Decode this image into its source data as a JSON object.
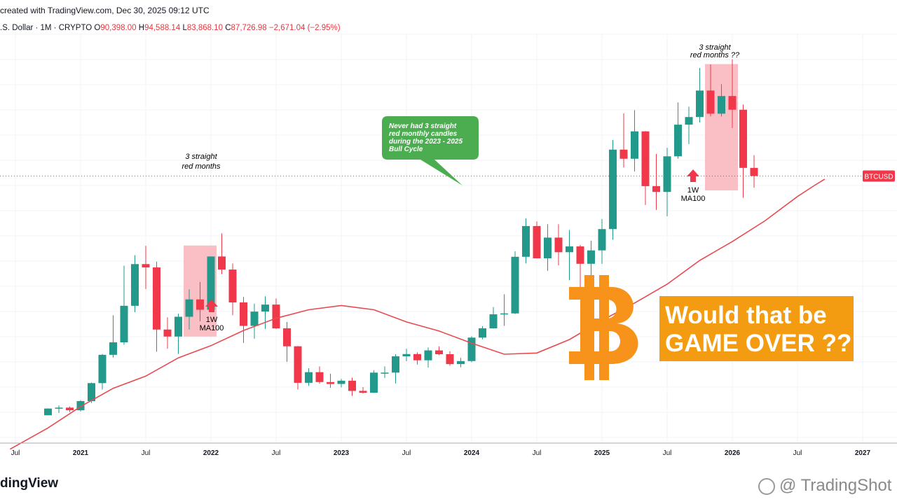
{
  "header": {
    "created_text": "created with TradingView.com, Dec 30, 2025 09:12 UTC"
  },
  "legend": {
    "symbol_text": ".S. Dollar · 1M · CRYPTO",
    "open_label": "O",
    "open_value": "90,398.00",
    "high_label": "H",
    "high_value": "94,588.14",
    "low_label": "L",
    "low_value": "83,868.10",
    "close_label": "C",
    "close_value": "87,726.98",
    "change_value": "−2,671.04 (−2.95%)"
  },
  "footer": {
    "brand_text": "dingView",
    "watermark_text": "@ TradingShot"
  },
  "colors": {
    "up": "#22998a",
    "down": "#f0384a",
    "ma": "#e84a4f",
    "highlight": "#f9b3bb",
    "callout": "#4cad50",
    "headline_bg": "#f39c12",
    "bitcoin": "#f7931a"
  },
  "chart_data": {
    "type": "candlestick",
    "timeframe": "1M",
    "symbol_label": "BTCUSD",
    "x_labels": [
      "Jul",
      "2021",
      "Jul",
      "2022",
      "Jul",
      "2023",
      "Jul",
      "2024",
      "Jul",
      "2025",
      "Jul",
      "2026",
      "Jul",
      "2027"
    ],
    "y_range": [
      0,
      126000
    ],
    "last_price": 87726.98,
    "candles": [
      {
        "o": 9140,
        "h": 11400,
        "l": 9100,
        "c": 11350
      },
      {
        "o": 11350,
        "h": 12400,
        "l": 9900,
        "c": 11650
      },
      {
        "o": 11650,
        "h": 12000,
        "l": 10200,
        "c": 10780
      },
      {
        "o": 10780,
        "h": 14100,
        "l": 10400,
        "c": 13800
      },
      {
        "o": 13800,
        "h": 19900,
        "l": 13200,
        "c": 19700
      },
      {
        "o": 19700,
        "h": 29300,
        "l": 17600,
        "c": 29000
      },
      {
        "o": 29000,
        "h": 42000,
        "l": 28100,
        "c": 33100
      },
      {
        "o": 33100,
        "h": 58300,
        "l": 32300,
        "c": 45100
      },
      {
        "o": 45100,
        "h": 61700,
        "l": 43000,
        "c": 58800
      },
      {
        "o": 58800,
        "h": 64800,
        "l": 50600,
        "c": 57700
      },
      {
        "o": 57700,
        "h": 59600,
        "l": 30000,
        "c": 37300
      },
      {
        "o": 37300,
        "h": 41300,
        "l": 31000,
        "c": 35000
      },
      {
        "o": 35000,
        "h": 42500,
        "l": 29300,
        "c": 41500
      },
      {
        "o": 41500,
        "h": 50500,
        "l": 37300,
        "c": 47200
      },
      {
        "o": 47200,
        "h": 52900,
        "l": 40000,
        "c": 43800
      },
      {
        "o": 43800,
        "h": 61300,
        "l": 43300,
        "c": 61300
      },
      {
        "o": 61300,
        "h": 68900,
        "l": 55500,
        "c": 57000
      },
      {
        "o": 57000,
        "h": 59000,
        "l": 42000,
        "c": 46200
      },
      {
        "o": 46200,
        "h": 48000,
        "l": 32900,
        "c": 38500
      },
      {
        "o": 38500,
        "h": 45800,
        "l": 34300,
        "c": 43200
      },
      {
        "o": 43200,
        "h": 48200,
        "l": 37500,
        "c": 45500
      },
      {
        "o": 45500,
        "h": 47500,
        "l": 37500,
        "c": 37700
      },
      {
        "o": 37700,
        "h": 39800,
        "l": 26700,
        "c": 31800
      },
      {
        "o": 31800,
        "h": 31900,
        "l": 17600,
        "c": 19800
      },
      {
        "o": 19800,
        "h": 24600,
        "l": 18800,
        "c": 23300
      },
      {
        "o": 23300,
        "h": 25200,
        "l": 19500,
        "c": 20050
      },
      {
        "o": 20050,
        "h": 22800,
        "l": 18150,
        "c": 19430
      },
      {
        "o": 19430,
        "h": 21100,
        "l": 18300,
        "c": 20500
      },
      {
        "o": 20500,
        "h": 21500,
        "l": 15500,
        "c": 17150
      },
      {
        "o": 17150,
        "h": 18400,
        "l": 16300,
        "c": 16550
      },
      {
        "o": 16550,
        "h": 23950,
        "l": 16500,
        "c": 23150
      },
      {
        "o": 23150,
        "h": 25200,
        "l": 21400,
        "c": 23150
      },
      {
        "o": 23150,
        "h": 29200,
        "l": 19600,
        "c": 28500
      },
      {
        "o": 28500,
        "h": 31000,
        "l": 26900,
        "c": 29250
      },
      {
        "o": 29250,
        "h": 29800,
        "l": 25800,
        "c": 27200
      },
      {
        "o": 27200,
        "h": 31400,
        "l": 24800,
        "c": 30450
      },
      {
        "o": 30450,
        "h": 31800,
        "l": 28900,
        "c": 29200
      },
      {
        "o": 29200,
        "h": 30200,
        "l": 25400,
        "c": 25950
      },
      {
        "o": 25950,
        "h": 28000,
        "l": 24900,
        "c": 26950
      },
      {
        "o": 26950,
        "h": 35100,
        "l": 26550,
        "c": 34650
      },
      {
        "o": 34650,
        "h": 38400,
        "l": 34100,
        "c": 37700
      },
      {
        "o": 37700,
        "h": 44700,
        "l": 37600,
        "c": 42300
      },
      {
        "o": 42300,
        "h": 48900,
        "l": 38500,
        "c": 42600
      },
      {
        "o": 42600,
        "h": 63000,
        "l": 42400,
        "c": 61200
      },
      {
        "o": 61200,
        "h": 73800,
        "l": 59000,
        "c": 71300
      },
      {
        "o": 71300,
        "h": 72800,
        "l": 60800,
        "c": 60700
      },
      {
        "o": 60700,
        "h": 71900,
        "l": 56600,
        "c": 67500
      },
      {
        "o": 67500,
        "h": 71900,
        "l": 58400,
        "c": 62700
      },
      {
        "o": 62700,
        "h": 70000,
        "l": 53500,
        "c": 64600
      },
      {
        "o": 64600,
        "h": 65100,
        "l": 49100,
        "c": 58900
      },
      {
        "o": 58900,
        "h": 66500,
        "l": 52500,
        "c": 63300
      },
      {
        "o": 63300,
        "h": 73600,
        "l": 58900,
        "c": 70300
      },
      {
        "o": 70300,
        "h": 99600,
        "l": 66800,
        "c": 96400
      },
      {
        "o": 96400,
        "h": 108300,
        "l": 90500,
        "c": 93400
      },
      {
        "o": 93400,
        "h": 109400,
        "l": 89200,
        "c": 102400
      },
      {
        "o": 102400,
        "h": 102500,
        "l": 78200,
        "c": 84400
      },
      {
        "o": 84400,
        "h": 95000,
        "l": 76600,
        "c": 82500
      },
      {
        "o": 82500,
        "h": 97000,
        "l": 74500,
        "c": 94200
      },
      {
        "o": 94200,
        "h": 111900,
        "l": 93400,
        "c": 104600
      },
      {
        "o": 104600,
        "h": 110500,
        "l": 98200,
        "c": 107100
      },
      {
        "o": 107100,
        "h": 123200,
        "l": 105300,
        "c": 115800
      },
      {
        "o": 115800,
        "h": 124400,
        "l": 107300,
        "c": 108200
      },
      {
        "o": 108200,
        "h": 117900,
        "l": 107300,
        "c": 114000
      },
      {
        "o": 114000,
        "h": 126100,
        "l": 103500,
        "c": 109500
      },
      {
        "o": 109500,
        "h": 111200,
        "l": 80600,
        "c": 90400
      },
      {
        "o": 90400,
        "h": 94588.14,
        "l": 83868.1,
        "c": 87726.98
      }
    ],
    "ma_label": "1W MA100",
    "ma_series": [
      {
        "t": -3.5,
        "v": -2000
      },
      {
        "t": 0,
        "v": 5000
      },
      {
        "t": 3,
        "v": 12000
      },
      {
        "t": 6,
        "v": 18000
      },
      {
        "t": 9,
        "v": 22000
      },
      {
        "t": 12,
        "v": 28000
      },
      {
        "t": 15,
        "v": 32000
      },
      {
        "t": 18,
        "v": 37000
      },
      {
        "t": 21,
        "v": 41000
      },
      {
        "t": 24,
        "v": 43800
      },
      {
        "t": 27,
        "v": 45200
      },
      {
        "t": 30,
        "v": 43800
      },
      {
        "t": 33,
        "v": 39800
      },
      {
        "t": 36,
        "v": 36800
      },
      {
        "t": 39,
        "v": 32800
      },
      {
        "t": 42,
        "v": 29200
      },
      {
        "t": 45,
        "v": 29600
      },
      {
        "t": 48,
        "v": 34000
      },
      {
        "t": 51,
        "v": 40300
      },
      {
        "t": 54,
        "v": 46000
      },
      {
        "t": 57,
        "v": 52200
      },
      {
        "t": 60,
        "v": 60000
      },
      {
        "t": 63,
        "v": 66200
      },
      {
        "t": 66,
        "v": 73000
      },
      {
        "t": 69,
        "v": 81000
      },
      {
        "t": 70.5,
        "v": 84500
      },
      {
        "t": 71.5,
        "v": 86700
      }
    ],
    "annotations": {
      "left_box_text_1": "3 straight",
      "left_box_text_2": "red months",
      "left_arrow_text_1": "1W",
      "left_arrow_text_2": "MA100",
      "right_box_text_1": "3 straight",
      "right_box_text_2": "red months ??",
      "right_arrow_text_1": "1W",
      "right_arrow_text_2": "MA100",
      "callout_lines": [
        "Never had 3 straight",
        "red monthly candles",
        "during the 2023 - 2025",
        "Bull Cycle"
      ],
      "headline_line_1": "Would that be",
      "headline_line_2": "GAME OVER ??"
    }
  }
}
